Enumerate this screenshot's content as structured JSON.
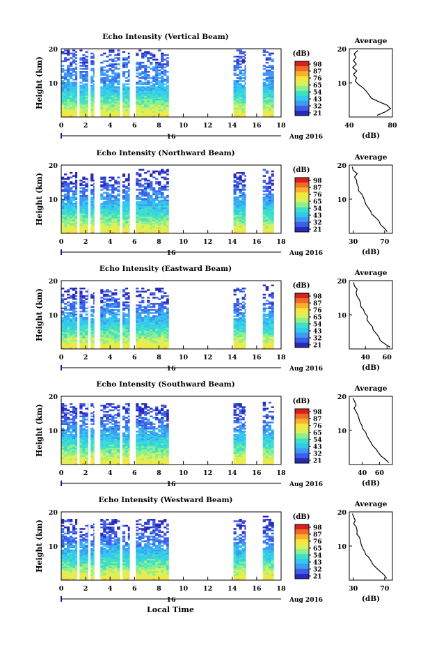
{
  "figure": {
    "xlabel": "Local Time",
    "date_label": "Aug 2016",
    "day_label": "16",
    "cbar_title": "(dB)",
    "avg_title": "Average",
    "avg_xlabel": "(dB)",
    "colors": [
      "#2a2ab8",
      "#3d5ee8",
      "#3d9bf0",
      "#33c8f0",
      "#40e0c8",
      "#8cf08c",
      "#dcf05a",
      "#f5e640",
      "#f7b030",
      "#f06a28",
      "#d72020"
    ]
  },
  "chart_data": [
    {
      "type": "heatmap",
      "title": "Echo Intensity (Vertical Beam)",
      "ylabel": "Height (km)",
      "xlim": [
        0,
        18
      ],
      "ylim": [
        0,
        20
      ],
      "x_ticks": [
        "0",
        "2",
        "4",
        "6",
        "8",
        "10",
        "12",
        "14",
        "16",
        "18"
      ],
      "y_ticks": [
        "20",
        "10"
      ],
      "colorbar_ticks": [
        "98",
        "87",
        "76",
        "65",
        "54",
        "43",
        "32",
        "21"
      ],
      "data_intervals": [
        [
          0,
          1.3
        ],
        [
          1.5,
          2.2
        ],
        [
          2.4,
          2.7
        ],
        [
          3.2,
          4.8
        ],
        [
          5.0,
          5.6
        ],
        [
          6.1,
          8.8
        ],
        [
          14.1,
          15.1
        ],
        [
          16.5,
          17.4
        ]
      ],
      "column_top_km": [
        [
          0,
          20
        ],
        [
          1.5,
          20
        ],
        [
          2.4,
          20
        ],
        [
          3.2,
          20
        ],
        [
          5.0,
          20
        ],
        [
          6.1,
          20
        ],
        [
          14.1,
          20
        ],
        [
          16.5,
          20
        ]
      ],
      "average": {
        "xlim": [
          40,
          80
        ],
        "x_ticks": [
          "40",
          "80"
        ],
        "y_ticks": [
          "20",
          "10"
        ],
        "points": [
          [
            66,
            0.5
          ],
          [
            74,
            1.5
          ],
          [
            78,
            2.5
          ],
          [
            75,
            3.5
          ],
          [
            68,
            4.5
          ],
          [
            60,
            5.5
          ],
          [
            58,
            6.5
          ],
          [
            56,
            7.5
          ],
          [
            52,
            8.5
          ],
          [
            48,
            9.5
          ],
          [
            46,
            10.5
          ],
          [
            47,
            11.5
          ],
          [
            44,
            12.5
          ],
          [
            46,
            13.5
          ],
          [
            43,
            14.5
          ],
          [
            47,
            15.5
          ],
          [
            44,
            16.5
          ],
          [
            46,
            17.5
          ],
          [
            44,
            18.5
          ],
          [
            47,
            19.5
          ]
        ]
      }
    },
    {
      "type": "heatmap",
      "title": "Echo Intensity (Northward Beam)",
      "ylabel": "Height (km)",
      "xlim": [
        0,
        18
      ],
      "ylim": [
        0,
        20
      ],
      "x_ticks": [
        "0",
        "2",
        "4",
        "6",
        "8",
        "10",
        "12",
        "14",
        "16",
        "18"
      ],
      "y_ticks": [
        "20",
        "10"
      ],
      "colorbar_ticks": [
        "98",
        "87",
        "76",
        "65",
        "54",
        "43",
        "32",
        "21"
      ],
      "data_intervals": [
        [
          0,
          1.3
        ],
        [
          1.5,
          2.2
        ],
        [
          2.4,
          2.7
        ],
        [
          3.2,
          4.8
        ],
        [
          5.0,
          5.6
        ],
        [
          6.1,
          8.8
        ],
        [
          14.1,
          15.1
        ],
        [
          16.5,
          17.4
        ]
      ],
      "column_top_km": [
        [
          0,
          18
        ],
        [
          1.5,
          17
        ],
        [
          2.4,
          18
        ],
        [
          3.2,
          17
        ],
        [
          5.0,
          18
        ],
        [
          6.1,
          19
        ],
        [
          14.1,
          18
        ],
        [
          16.5,
          19
        ]
      ],
      "average": {
        "xlim": [
          25,
          80
        ],
        "x_ticks": [
          "30",
          "70"
        ],
        "y_ticks": [
          "20",
          "10"
        ],
        "points": [
          [
            72,
            0.5
          ],
          [
            70,
            1.5
          ],
          [
            66,
            2.5
          ],
          [
            62,
            3.5
          ],
          [
            58,
            4.5
          ],
          [
            55,
            5.5
          ],
          [
            52,
            6.5
          ],
          [
            48,
            7.5
          ],
          [
            45,
            8.5
          ],
          [
            44,
            9.5
          ],
          [
            42,
            10.5
          ],
          [
            40,
            11.5
          ],
          [
            38,
            12.5
          ],
          [
            36,
            13.5
          ],
          [
            35,
            14.5
          ],
          [
            34,
            15.5
          ],
          [
            32,
            16.5
          ],
          [
            34,
            17.5
          ],
          [
            31,
            18.5
          ],
          [
            30,
            19.5
          ]
        ]
      }
    },
    {
      "type": "heatmap",
      "title": "Echo Intensity (Eastward Beam)",
      "ylabel": "Height (km)",
      "xlim": [
        0,
        18
      ],
      "ylim": [
        0,
        20
      ],
      "x_ticks": [
        "0",
        "2",
        "4",
        "6",
        "8",
        "10",
        "12",
        "14",
        "16",
        "18"
      ],
      "y_ticks": [
        "20",
        "10"
      ],
      "colorbar_ticks": [
        "98",
        "87",
        "76",
        "65",
        "54",
        "43",
        "32",
        "21"
      ],
      "data_intervals": [
        [
          0,
          1.3
        ],
        [
          1.5,
          2.2
        ],
        [
          2.4,
          2.7
        ],
        [
          3.2,
          4.8
        ],
        [
          5.0,
          5.6
        ],
        [
          6.1,
          8.8
        ],
        [
          14.1,
          15.1
        ],
        [
          16.5,
          17.4
        ]
      ],
      "column_top_km": [
        [
          0,
          18
        ],
        [
          1.5,
          18
        ],
        [
          2.4,
          17
        ],
        [
          3.2,
          18
        ],
        [
          5.0,
          18
        ],
        [
          6.1,
          18
        ],
        [
          14.1,
          18
        ],
        [
          16.5,
          19
        ]
      ],
      "average": {
        "xlim": [
          25,
          65
        ],
        "x_ticks": [
          "40",
          "60"
        ],
        "y_ticks": [
          "20",
          "10"
        ],
        "points": [
          [
            62,
            0.5
          ],
          [
            58,
            1.5
          ],
          [
            54,
            2.5
          ],
          [
            52,
            3.5
          ],
          [
            50,
            4.5
          ],
          [
            48,
            5.5
          ],
          [
            46,
            6.5
          ],
          [
            44,
            7.5
          ],
          [
            42,
            8.5
          ],
          [
            41,
            9.5
          ],
          [
            40,
            10.5
          ],
          [
            38,
            11.5
          ],
          [
            36,
            12.5
          ],
          [
            35,
            13.5
          ],
          [
            34,
            14.5
          ],
          [
            33,
            15.5
          ],
          [
            31,
            16.5
          ],
          [
            33,
            17.5
          ],
          [
            30,
            18.5
          ],
          [
            29,
            19.5
          ]
        ]
      }
    },
    {
      "type": "heatmap",
      "title": "Echo Intensity (Southward Beam)",
      "ylabel": "Height (km)",
      "xlim": [
        0,
        18
      ],
      "ylim": [
        0,
        20
      ],
      "x_ticks": [
        "0",
        "2",
        "4",
        "6",
        "8",
        "10",
        "12",
        "14",
        "16",
        "18"
      ],
      "y_ticks": [
        "20",
        "10"
      ],
      "colorbar_ticks": [
        "98",
        "87",
        "76",
        "65",
        "54",
        "43",
        "32",
        "21"
      ],
      "data_intervals": [
        [
          0,
          1.3
        ],
        [
          1.5,
          2.2
        ],
        [
          2.4,
          2.7
        ],
        [
          3.2,
          4.8
        ],
        [
          5.0,
          5.6
        ],
        [
          6.1,
          8.8
        ],
        [
          14.1,
          15.1
        ],
        [
          16.5,
          17.4
        ]
      ],
      "column_top_km": [
        [
          0,
          18
        ],
        [
          1.5,
          18
        ],
        [
          2.4,
          18
        ],
        [
          3.2,
          18
        ],
        [
          5.0,
          18
        ],
        [
          6.1,
          18
        ],
        [
          14.1,
          18
        ],
        [
          16.5,
          19
        ]
      ],
      "average": {
        "xlim": [
          25,
          75
        ],
        "x_ticks": [
          "40",
          "60"
        ],
        "y_ticks": [
          "20",
          "10"
        ],
        "points": [
          [
            70,
            0.5
          ],
          [
            66,
            1.5
          ],
          [
            62,
            2.5
          ],
          [
            58,
            3.5
          ],
          [
            55,
            4.5
          ],
          [
            52,
            5.5
          ],
          [
            50,
            6.5
          ],
          [
            47,
            7.5
          ],
          [
            45,
            8.5
          ],
          [
            43,
            9.5
          ],
          [
            41,
            10.5
          ],
          [
            40,
            11.5
          ],
          [
            38,
            12.5
          ],
          [
            36,
            13.5
          ],
          [
            35,
            14.5
          ],
          [
            33,
            15.5
          ],
          [
            31,
            16.5
          ],
          [
            33,
            17.5
          ],
          [
            30,
            18.5
          ],
          [
            29,
            19.5
          ]
        ]
      }
    },
    {
      "type": "heatmap",
      "title": "Echo Intensity (Westward Beam)",
      "ylabel": "Height (km)",
      "xlim": [
        0,
        18
      ],
      "ylim": [
        0,
        20
      ],
      "x_ticks": [
        "0",
        "2",
        "4",
        "6",
        "8",
        "10",
        "12",
        "14",
        "16",
        "18"
      ],
      "y_ticks": [
        "20",
        "10"
      ],
      "colorbar_ticks": [
        "98",
        "87",
        "76",
        "65",
        "54",
        "43",
        "32",
        "21"
      ],
      "data_intervals": [
        [
          0,
          1.3
        ],
        [
          1.5,
          2.2
        ],
        [
          2.4,
          2.7
        ],
        [
          3.2,
          4.8
        ],
        [
          5.0,
          5.6
        ],
        [
          6.1,
          8.8
        ],
        [
          14.1,
          15.1
        ],
        [
          16.5,
          17.4
        ]
      ],
      "column_top_km": [
        [
          0,
          18
        ],
        [
          1.5,
          17
        ],
        [
          2.4,
          17
        ],
        [
          3.2,
          18
        ],
        [
          5.0,
          17
        ],
        [
          6.1,
          18
        ],
        [
          14.1,
          18
        ],
        [
          16.5,
          19
        ]
      ],
      "average": {
        "xlim": [
          25,
          80
        ],
        "x_ticks": [
          "30",
          "70"
        ],
        "y_ticks": [
          "20",
          "10"
        ],
        "points": [
          [
            72,
            0.5
          ],
          [
            69,
            1.5
          ],
          [
            65,
            2.5
          ],
          [
            60,
            3.5
          ],
          [
            56,
            4.5
          ],
          [
            53,
            5.5
          ],
          [
            50,
            6.5
          ],
          [
            47,
            7.5
          ],
          [
            44,
            8.5
          ],
          [
            42,
            9.5
          ],
          [
            40,
            10.5
          ],
          [
            38,
            11.5
          ],
          [
            37,
            12.5
          ],
          [
            35,
            13.5
          ],
          [
            34,
            14.5
          ],
          [
            33,
            15.5
          ],
          [
            31,
            16.5
          ],
          [
            33,
            17.5
          ],
          [
            30,
            18.5
          ],
          [
            29,
            19.5
          ]
        ]
      }
    }
  ]
}
